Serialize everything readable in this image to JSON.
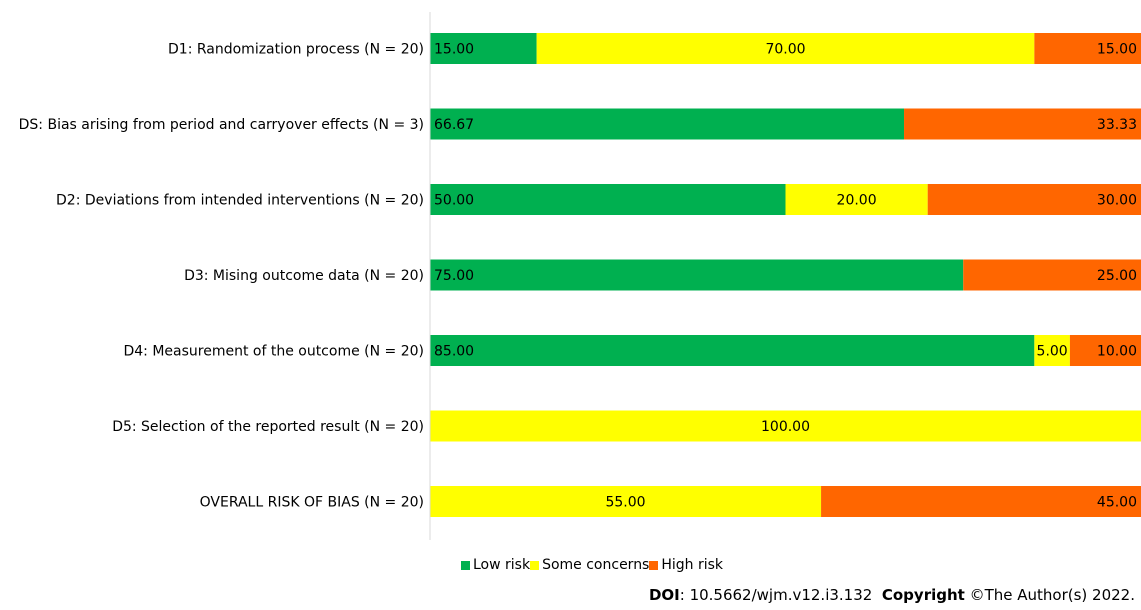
{
  "chart_data": {
    "type": "bar",
    "orientation": "horizontal",
    "stacked": true,
    "percent": true,
    "categories": [
      "D1: Randomization process (N = 20)",
      "DS: Bias arising from period and carryover effects (N = 3)",
      "D2: Deviations from intended interventions (N = 20)",
      "D3: Mising outcome data (N = 20)",
      "D4: Measurement of the outcome (N = 20)",
      "D5: Selection of the reported result (N = 20)",
      "OVERALL RISK OF BIAS (N = 20)"
    ],
    "series": [
      {
        "name": "Low risk",
        "color": "#00b050",
        "values": [
          15.0,
          66.67,
          50.0,
          75.0,
          85.0,
          0,
          0
        ],
        "labels": [
          "15.00",
          "66.67",
          "50.00",
          "75.00",
          "85.00",
          "",
          ""
        ]
      },
      {
        "name": "Some concerns",
        "color": "#ffff00",
        "values": [
          70.0,
          0,
          20.0,
          0,
          5.0,
          100.0,
          55.0
        ],
        "labels": [
          "70.00",
          "",
          "20.00",
          "",
          "5.00",
          "100.00",
          "55.00"
        ]
      },
      {
        "name": "High risk",
        "color": "#ff6600",
        "values": [
          15.0,
          33.33,
          30.0,
          25.0,
          10.0,
          0,
          45.0
        ],
        "labels": [
          "15.00",
          "33.33",
          "30.00",
          "25.00",
          "10.00",
          "",
          "45.00"
        ]
      }
    ],
    "xlim": [
      0,
      100
    ],
    "legend_position": "bottom",
    "grid": false
  },
  "footer": {
    "doi_label": "DOI",
    "doi_text": ": 10.5662/wjm.v12.i3.132",
    "copyright_label": "Copyright",
    "copyright_text": " ©The Author(s) 2022."
  }
}
